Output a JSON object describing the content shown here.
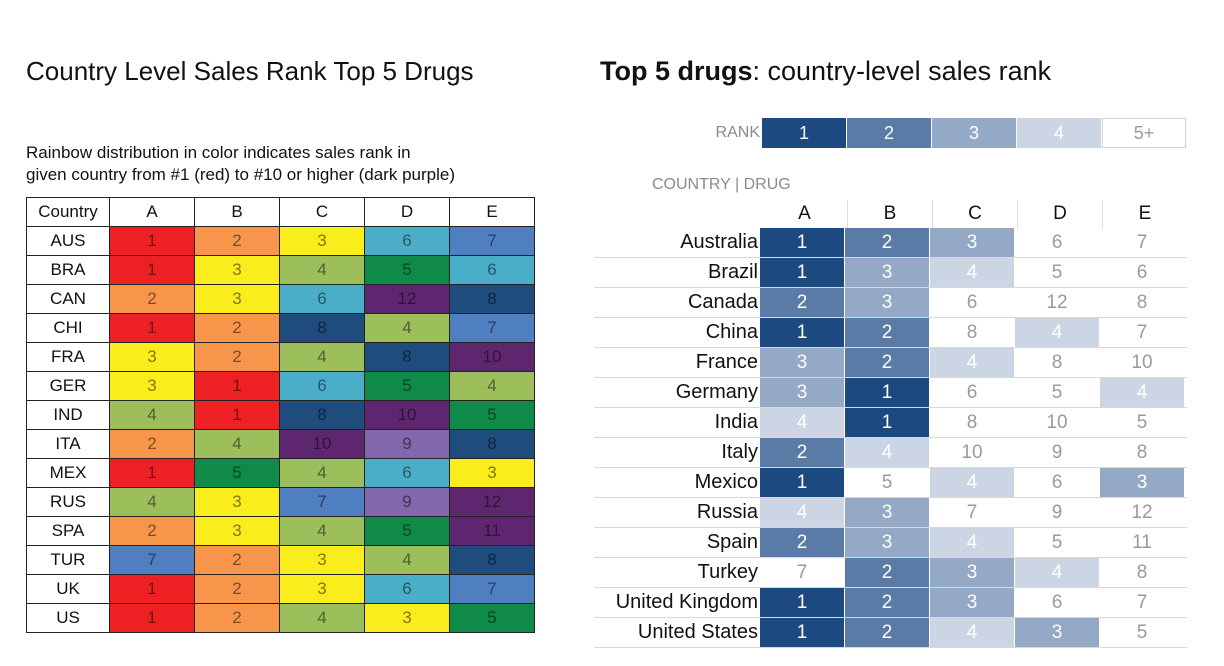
{
  "chart_data": [
    {
      "type": "heatmap",
      "title": "Country Level Sales Rank Top 5 Drugs",
      "subtitle": "Rainbow distribution in color indicates sales rank in given country from #1 (red) to #10 or higher (dark purple)",
      "subtitle_lines": [
        "Rainbow distribution in color indicates sales rank in",
        "given country from #1 (red) to #10 or higher (dark purple)"
      ],
      "row_header": "Country",
      "columns": [
        "A",
        "B",
        "C",
        "D",
        "E"
      ],
      "rows": [
        "AUS",
        "BRA",
        "CAN",
        "CHI",
        "FRA",
        "GER",
        "IND",
        "ITA",
        "MEX",
        "RUS",
        "SPA",
        "TUR",
        "UK",
        "US"
      ],
      "values": [
        [
          1,
          2,
          3,
          6,
          7
        ],
        [
          1,
          3,
          4,
          5,
          6
        ],
        [
          2,
          3,
          6,
          12,
          8
        ],
        [
          1,
          2,
          8,
          4,
          7
        ],
        [
          3,
          2,
          4,
          8,
          10
        ],
        [
          3,
          1,
          6,
          5,
          4
        ],
        [
          4,
          1,
          8,
          10,
          5
        ],
        [
          2,
          4,
          10,
          9,
          8
        ],
        [
          1,
          5,
          4,
          6,
          3
        ],
        [
          4,
          3,
          7,
          9,
          12
        ],
        [
          2,
          3,
          4,
          5,
          11
        ],
        [
          7,
          2,
          3,
          4,
          8
        ],
        [
          1,
          2,
          3,
          6,
          7
        ],
        [
          1,
          2,
          4,
          3,
          5
        ]
      ],
      "color_scale": {
        "1": "#ed2024",
        "2": "#f7964a",
        "3": "#faed1c",
        "4": "#9cbf5c",
        "5": "#0f8a48",
        "6": "#4aaec9",
        "7": "#4f7fc1",
        "8": "#1e4c7d",
        "9": "#8068aa",
        "10": "#5f2670",
        "11": "#5f2670",
        "12": "#5f2670"
      }
    },
    {
      "type": "heatmap",
      "title_bold": "Top 5 drugs",
      "title_rest": ": country-level sales rank",
      "legend_label": "RANK",
      "legend": [
        "1",
        "2",
        "3",
        "4",
        "5+"
      ],
      "axis_title": "COUNTRY | DRUG",
      "columns": [
        "A",
        "B",
        "C",
        "D",
        "E"
      ],
      "rows": [
        "Australia",
        "Brazil",
        "Canada",
        "China",
        "France",
        "Germany",
        "India",
        "Italy",
        "Mexico",
        "Russia",
        "Spain",
        "Turkey",
        "United Kingdom",
        "United States"
      ],
      "values": [
        [
          1,
          2,
          3,
          6,
          7
        ],
        [
          1,
          3,
          4,
          5,
          6
        ],
        [
          2,
          3,
          6,
          12,
          8
        ],
        [
          1,
          2,
          8,
          4,
          7
        ],
        [
          3,
          2,
          4,
          8,
          10
        ],
        [
          3,
          1,
          6,
          5,
          4
        ],
        [
          4,
          1,
          8,
          10,
          5
        ],
        [
          2,
          4,
          10,
          9,
          8
        ],
        [
          1,
          5,
          4,
          6,
          3
        ],
        [
          4,
          3,
          7,
          9,
          12
        ],
        [
          2,
          3,
          4,
          5,
          11
        ],
        [
          7,
          2,
          3,
          4,
          8
        ],
        [
          1,
          2,
          3,
          6,
          7
        ],
        [
          1,
          2,
          4,
          3,
          5
        ]
      ],
      "color_scale": {
        "1": {
          "bg": "#1c4a80",
          "fg": "#ffffff"
        },
        "2": {
          "bg": "#5a7ba6",
          "fg": "#ffffff"
        },
        "3": {
          "bg": "#94a9c5",
          "fg": "#ffffff"
        },
        "4": {
          "bg": "#cbd5e3",
          "fg": "#ffffff"
        },
        "5+": {
          "bg": "#ffffff",
          "fg": "#9a9a9a"
        }
      }
    }
  ]
}
